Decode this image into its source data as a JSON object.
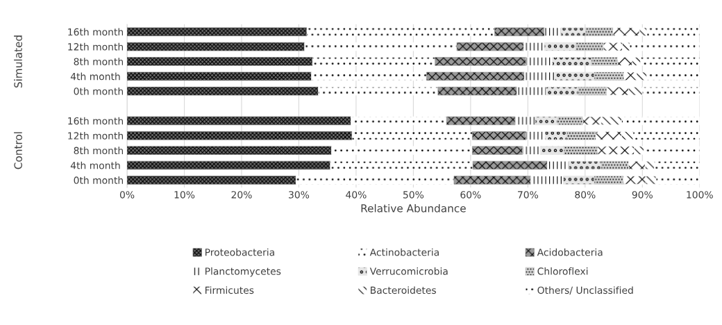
{
  "chart_data": {
    "type": "bar",
    "orientation": "horizontal",
    "stacked": true,
    "xlabel": "Relative Abundance",
    "categories": [
      "16th month",
      "12th month",
      "8th month",
      "4th month ",
      "0th month",
      null,
      "16th month",
      "12th month",
      "8th month",
      "4th month ",
      "0th month"
    ],
    "annotations": [
      "Simulated",
      "Control"
    ],
    "xlim": [
      0,
      100
    ],
    "xticks": [
      {
        "value": 0,
        "label": "0%"
      },
      {
        "value": 10,
        "label": "10%"
      },
      {
        "value": 20,
        "label": "20%"
      },
      {
        "value": 30,
        "label": "30%"
      },
      {
        "value": 40,
        "label": "40%"
      },
      {
        "value": 50,
        "label": "50%"
      },
      {
        "value": 60,
        "label": "60%"
      },
      {
        "value": 70,
        "label": "70%"
      },
      {
        "value": 80,
        "label": "80%"
      },
      {
        "value": 90,
        "label": "90%"
      },
      {
        "value": 100,
        "label": "100%"
      }
    ],
    "grid": "x",
    "legend": "bottom",
    "series": [
      {
        "name": "Proteobacteria",
        "color": "#707070",
        "values": [
          31.4,
          31.0,
          32.4,
          32.2,
          33.4,
          null,
          39.1,
          39.3,
          35.7,
          35.5,
          29.5
        ]
      },
      {
        "name": "Actinobacteria",
        "color": "#ffffff",
        "values": [
          32.8,
          26.6,
          21.4,
          20.1,
          20.9,
          null,
          16.7,
          21.0,
          24.6,
          24.9,
          27.6
        ]
      },
      {
        "name": "Acidobacteria",
        "color": "#9a9a9a",
        "values": [
          8.7,
          11.7,
          15.9,
          17.1,
          13.8,
          null,
          12.0,
          9.4,
          8.8,
          13.0,
          13.4
        ]
      },
      {
        "name": "Planctomycetes",
        "color": "#ffffff",
        "values": [
          2.9,
          3.6,
          4.6,
          5.3,
          5.1,
          null,
          3.5,
          3.3,
          3.1,
          3.8,
          5.7
        ]
      },
      {
        "name": "Verrucomicrobia",
        "color": "#e6e6e6",
        "values": [
          4.3,
          5.5,
          6.8,
          6.9,
          5.6,
          null,
          3.9,
          3.8,
          4.1,
          5.6,
          5.4
        ]
      },
      {
        "name": "Chloroflexi",
        "color": "#d0d0d0",
        "values": [
          4.8,
          4.8,
          4.6,
          5.2,
          5.0,
          null,
          4.4,
          5.1,
          5.9,
          4.8,
          5.1
        ]
      },
      {
        "name": "Firmicutes",
        "color": "#ffffff",
        "values": [
          4.6,
          3.3,
          2.5,
          2.2,
          3.8,
          null,
          3.2,
          4.5,
          6.4,
          2.9,
          3.9
        ]
      },
      {
        "name": "Bacteroidetes",
        "color": "#ffffff",
        "values": [
          1.3,
          1.3,
          1.5,
          1.8,
          2.4,
          null,
          3.6,
          2.0,
          1.7,
          1.6,
          1.8
        ]
      },
      {
        "name": "Others/ Unclassified",
        "color": "#ffffff",
        "values": [
          9.2,
          12.2,
          10.3,
          9.2,
          10.0,
          null,
          13.6,
          11.6,
          9.7,
          7.9,
          7.6
        ]
      }
    ]
  }
}
